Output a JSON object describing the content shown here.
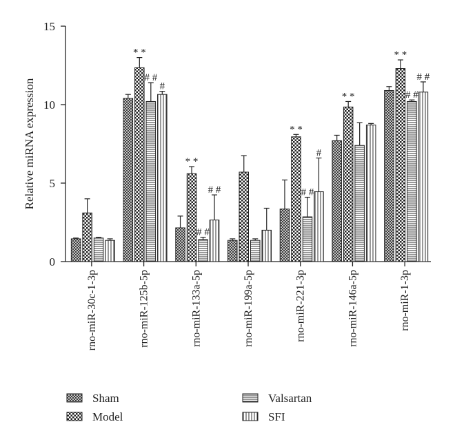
{
  "chart_data": {
    "type": "bar",
    "title": "",
    "xlabel": "",
    "ylabel": "Relative miRNA expression",
    "ylim": [
      0,
      15
    ],
    "yticks": [
      0,
      5,
      10,
      15
    ],
    "categories": [
      "rno-miR-30c-1-3p",
      "rno-miR-125b-5p",
      "rno-miR-133a-5p",
      "rno-miR-199a-5p",
      "rno-miR-221-3p",
      "rno-miR-146a-5p",
      "rno-miR-1-3p"
    ],
    "series": [
      {
        "name": "Sham",
        "pattern": "dense-crosshatch",
        "values": [
          1.45,
          10.4,
          2.15,
          1.35,
          3.35,
          7.7,
          10.9
        ],
        "errors": [
          0.05,
          0.25,
          0.75,
          0.1,
          1.85,
          0.35,
          0.25
        ],
        "annotations": [
          "",
          "",
          "",
          "",
          "",
          "",
          ""
        ]
      },
      {
        "name": "Model",
        "pattern": "checker",
        "values": [
          3.1,
          12.35,
          5.6,
          5.7,
          7.95,
          9.85,
          12.3
        ],
        "errors": [
          0.9,
          0.65,
          0.45,
          1.05,
          0.15,
          0.35,
          0.55
        ],
        "annotations": [
          "",
          "**",
          "**",
          "",
          "**",
          "**",
          "**"
        ]
      },
      {
        "name": "Valsartan",
        "pattern": "horizontal-lines",
        "values": [
          1.5,
          10.2,
          1.4,
          1.35,
          2.85,
          7.4,
          10.2
        ],
        "errors": [
          0.05,
          1.2,
          0.15,
          0.1,
          1.25,
          1.45,
          0.1
        ],
        "annotations": [
          "",
          "##",
          "##",
          "",
          "##",
          "",
          "##"
        ]
      },
      {
        "name": "SFI",
        "pattern": "vertical-lines",
        "values": [
          1.35,
          10.65,
          2.65,
          2.0,
          4.45,
          8.7,
          10.8
        ],
        "errors": [
          0.1,
          0.2,
          1.6,
          1.4,
          2.15,
          0.1,
          0.65
        ],
        "annotations": [
          "",
          "#",
          "##",
          "",
          "#",
          "",
          "##"
        ]
      }
    ],
    "legend": {
      "position": "bottom",
      "columns": [
        [
          "Sham",
          "Model"
        ],
        [
          "Valsartan",
          "SFI"
        ]
      ]
    },
    "grid": false
  }
}
